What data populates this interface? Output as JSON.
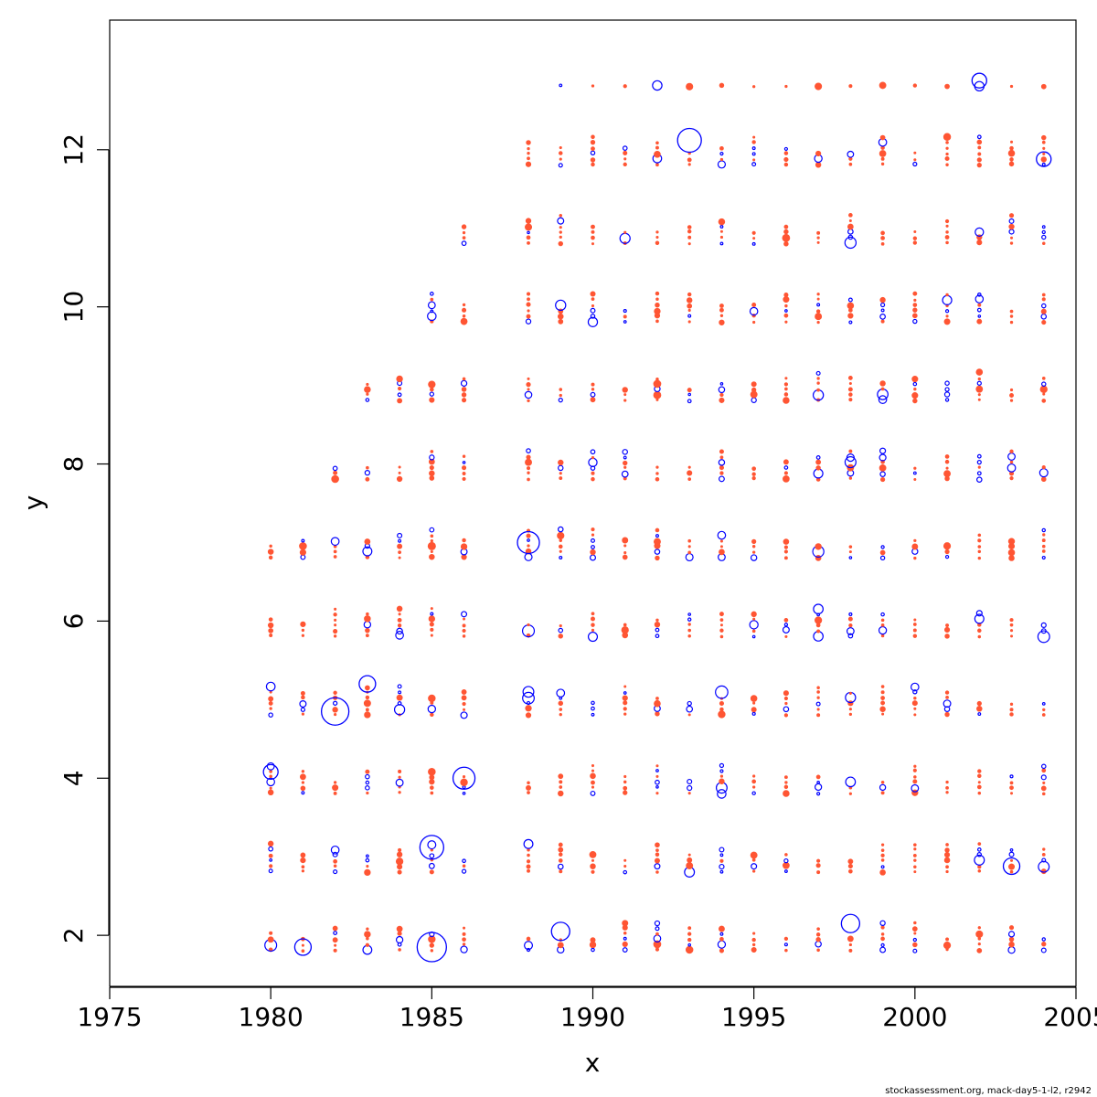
{
  "chart_data": {
    "type": "scatter",
    "title": "",
    "xlabel": "x",
    "ylabel": "y",
    "xlim": [
      1975,
      2005
    ],
    "ylim": [
      1.35,
      13.65
    ],
    "xticks": [
      1975,
      1980,
      1985,
      1990,
      1995,
      2000,
      2005
    ],
    "yticks": [
      2,
      4,
      6,
      8,
      10,
      12
    ],
    "grid": false,
    "legend": "none",
    "footer": "stockassessment.org, mack-day5-1-l2, r2942",
    "colors": {
      "positive": "#ff5533",
      "negative": "#0000ff",
      "axis": "#000000"
    },
    "x": [
      1980,
      1981,
      1982,
      1983,
      1984,
      1985,
      1986,
      1988,
      1989,
      1990,
      1991,
      1992,
      1993,
      1994,
      1995,
      1996,
      1997,
      1998,
      1999,
      2000,
      2001,
      2002,
      2003,
      2004
    ],
    "ages": [
      2,
      3,
      4,
      5,
      6,
      7,
      8,
      9,
      10,
      11,
      12,
      13
    ],
    "offsets": [
      -0.19,
      -0.12,
      -0.05,
      0.02,
      0.09,
      0.16
    ],
    "large_circles": [
      {
        "x": 1985,
        "y": 1.85,
        "r": 16
      },
      {
        "x": 1982,
        "y": 4.85,
        "r": 15
      },
      {
        "x": 1993,
        "y": 12.12,
        "r": 13
      },
      {
        "x": 1985,
        "y": 3.12,
        "r": 13
      },
      {
        "x": 1988,
        "y": 7.0,
        "r": 12
      },
      {
        "x": 1986,
        "y": 4.0,
        "r": 12
      },
      {
        "x": 2003,
        "y": 2.88,
        "r": 9
      },
      {
        "x": 1981,
        "y": 1.85,
        "r": 9
      },
      {
        "x": 1983,
        "y": 5.2,
        "r": 9
      },
      {
        "x": 2002,
        "y": 12.88,
        "r": 8
      },
      {
        "x": 2004,
        "y": 11.88,
        "r": 8
      },
      {
        "x": 1980,
        "y": 4.08,
        "r": 8
      },
      {
        "x": 1998,
        "y": 2.15,
        "r": 10
      },
      {
        "x": 1989,
        "y": 2.05,
        "r": 10
      }
    ]
  }
}
